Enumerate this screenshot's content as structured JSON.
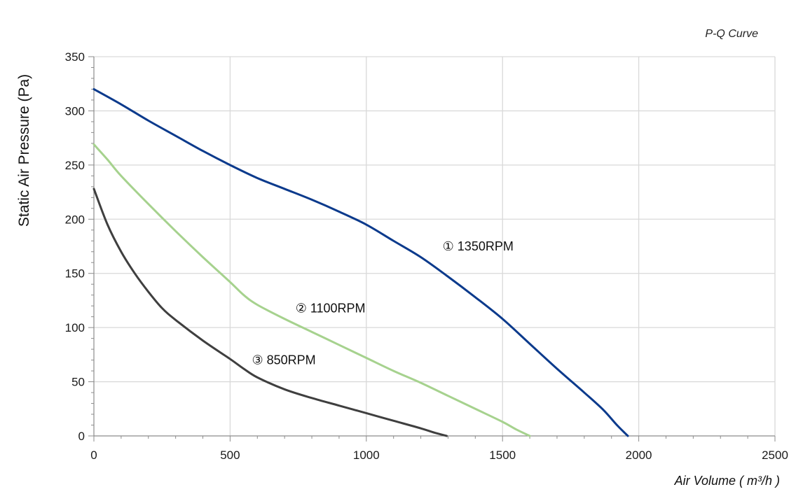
{
  "chart_data": {
    "type": "line",
    "title": "P-Q Curve",
    "xlabel": "Air Volume ( m³/h )",
    "ylabel": "Static Air Pressure  (Pa)",
    "xlim": [
      0,
      2500
    ],
    "ylim": [
      0,
      350
    ],
    "xticks": [
      0,
      500,
      1000,
      1500,
      2000,
      2500
    ],
    "yticks": [
      0,
      50,
      100,
      150,
      200,
      250,
      300,
      350
    ],
    "grid": true,
    "legend": "inline labels",
    "series": [
      {
        "name": "① 1350RPM",
        "color": "#0b3a8c",
        "points": [
          [
            0,
            320
          ],
          [
            100,
            306
          ],
          [
            200,
            291
          ],
          [
            300,
            277
          ],
          [
            400,
            263
          ],
          [
            500,
            250
          ],
          [
            600,
            238
          ],
          [
            700,
            228
          ],
          [
            800,
            218
          ],
          [
            900,
            207
          ],
          [
            1000,
            195
          ],
          [
            1100,
            180
          ],
          [
            1200,
            165
          ],
          [
            1300,
            147
          ],
          [
            1400,
            128
          ],
          [
            1500,
            108
          ],
          [
            1600,
            85
          ],
          [
            1700,
            62
          ],
          [
            1800,
            40
          ],
          [
            1870,
            24
          ],
          [
            1920,
            10
          ],
          [
            1960,
            0
          ]
        ]
      },
      {
        "name": "② 1100RPM",
        "color": "#a6d28e",
        "points": [
          [
            0,
            269
          ],
          [
            50,
            255
          ],
          [
            100,
            240
          ],
          [
            200,
            214
          ],
          [
            300,
            189
          ],
          [
            400,
            165
          ],
          [
            500,
            142
          ],
          [
            550,
            130
          ],
          [
            600,
            121
          ],
          [
            700,
            108
          ],
          [
            800,
            96
          ],
          [
            900,
            84
          ],
          [
            1000,
            72
          ],
          [
            1100,
            60
          ],
          [
            1200,
            49
          ],
          [
            1300,
            37
          ],
          [
            1400,
            25
          ],
          [
            1500,
            13
          ],
          [
            1550,
            6
          ],
          [
            1600,
            0
          ]
        ]
      },
      {
        "name": "③ 850RPM",
        "color": "#3f3f3f",
        "points": [
          [
            0,
            228
          ],
          [
            50,
            195
          ],
          [
            100,
            170
          ],
          [
            150,
            150
          ],
          [
            200,
            133
          ],
          [
            250,
            118
          ],
          [
            300,
            107
          ],
          [
            400,
            88
          ],
          [
            500,
            71
          ],
          [
            550,
            62
          ],
          [
            600,
            54
          ],
          [
            700,
            43
          ],
          [
            800,
            35
          ],
          [
            900,
            28
          ],
          [
            1000,
            21
          ],
          [
            1100,
            14
          ],
          [
            1200,
            7
          ],
          [
            1250,
            3
          ],
          [
            1295,
            0
          ]
        ]
      }
    ]
  }
}
